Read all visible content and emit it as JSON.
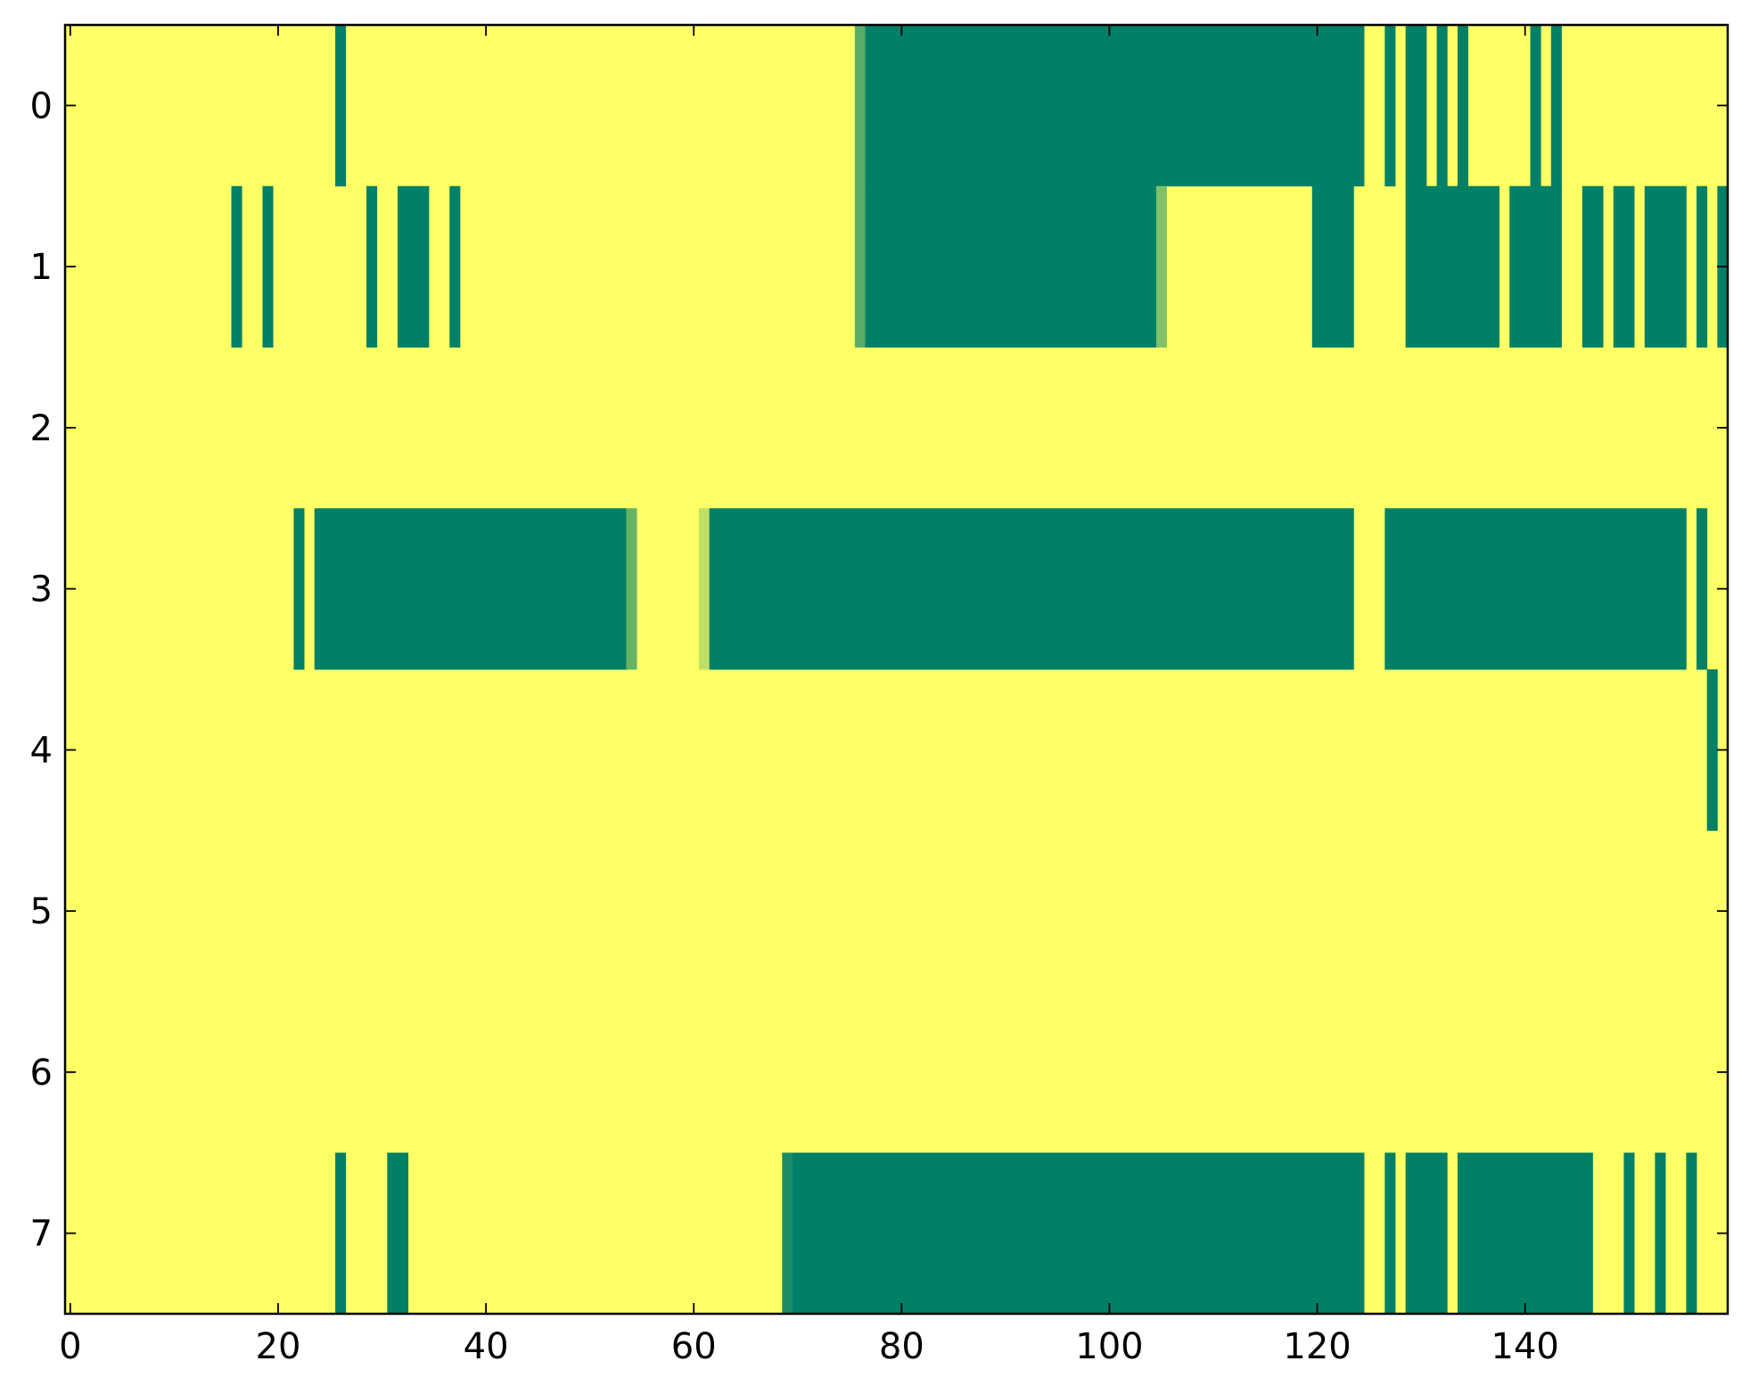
{
  "chart_data": {
    "type": "heatmap",
    "title": "",
    "xlabel": "",
    "ylabel": "",
    "x_range": [
      -0.5,
      159.5
    ],
    "y_range": [
      -0.5,
      7.5
    ],
    "x_ticks": [
      0,
      20,
      40,
      60,
      80,
      100,
      120,
      140
    ],
    "y_ticks": [
      0,
      1,
      2,
      3,
      4,
      5,
      6,
      7
    ],
    "colormap": "summer",
    "background_value": 1.0,
    "colors": {
      "low": "#008066",
      "high": "#ffff66",
      "frame": "#000000"
    },
    "rows": [
      {
        "row": 0,
        "segments": [
          {
            "start": 26,
            "end": 26,
            "value": 0.0
          },
          {
            "start": 76,
            "end": 76,
            "value": 0.35
          },
          {
            "start": 77,
            "end": 124,
            "value": 0.0
          },
          {
            "start": 127,
            "end": 127,
            "value": 0.0
          },
          {
            "start": 129,
            "end": 130,
            "value": 0.0
          },
          {
            "start": 132,
            "end": 132,
            "value": 0.0
          },
          {
            "start": 134,
            "end": 134,
            "value": 0.0
          },
          {
            "start": 141,
            "end": 141,
            "value": 0.0
          },
          {
            "start": 143,
            "end": 143,
            "value": 0.0
          }
        ]
      },
      {
        "row": 1,
        "segments": [
          {
            "start": 16,
            "end": 16,
            "value": 0.0
          },
          {
            "start": 19,
            "end": 19,
            "value": 0.0
          },
          {
            "start": 29,
            "end": 29,
            "value": 0.0
          },
          {
            "start": 32,
            "end": 34,
            "value": 0.0
          },
          {
            "start": 37,
            "end": 37,
            "value": 0.0
          },
          {
            "start": 76,
            "end": 76,
            "value": 0.35
          },
          {
            "start": 77,
            "end": 104,
            "value": 0.0
          },
          {
            "start": 105,
            "end": 105,
            "value": 0.5
          },
          {
            "start": 120,
            "end": 123,
            "value": 0.0
          },
          {
            "start": 129,
            "end": 137,
            "value": 0.0
          },
          {
            "start": 139,
            "end": 143,
            "value": 0.0
          },
          {
            "start": 146,
            "end": 147,
            "value": 0.0
          },
          {
            "start": 149,
            "end": 150,
            "value": 0.0
          },
          {
            "start": 152,
            "end": 155,
            "value": 0.0
          },
          {
            "start": 157,
            "end": 157,
            "value": 0.0
          },
          {
            "start": 159,
            "end": 159,
            "value": 0.0
          }
        ]
      },
      {
        "row": 2,
        "segments": []
      },
      {
        "row": 3,
        "segments": [
          {
            "start": 22,
            "end": 22,
            "value": 0.0
          },
          {
            "start": 24,
            "end": 53,
            "value": 0.0
          },
          {
            "start": 54,
            "end": 54,
            "value": 0.4
          },
          {
            "start": 61,
            "end": 61,
            "value": 0.75
          },
          {
            "start": 62,
            "end": 123,
            "value": 0.0
          },
          {
            "start": 127,
            "end": 155,
            "value": 0.0
          },
          {
            "start": 157,
            "end": 157,
            "value": 0.0
          }
        ]
      },
      {
        "row": 4,
        "segments": [
          {
            "start": 158,
            "end": 158,
            "value": 0.0
          }
        ]
      },
      {
        "row": 5,
        "segments": []
      },
      {
        "row": 6,
        "segments": []
      },
      {
        "row": 7,
        "segments": [
          {
            "start": 26,
            "end": 26,
            "value": 0.0
          },
          {
            "start": 31,
            "end": 32,
            "value": 0.0
          },
          {
            "start": 69,
            "end": 69,
            "value": 0.1
          },
          {
            "start": 70,
            "end": 124,
            "value": 0.0
          },
          {
            "start": 127,
            "end": 127,
            "value": 0.0
          },
          {
            "start": 129,
            "end": 132,
            "value": 0.0
          },
          {
            "start": 134,
            "end": 146,
            "value": 0.0
          },
          {
            "start": 150,
            "end": 150,
            "value": 0.0
          },
          {
            "start": 153,
            "end": 153,
            "value": 0.0
          },
          {
            "start": 156,
            "end": 156,
            "value": 0.0
          }
        ]
      }
    ]
  }
}
